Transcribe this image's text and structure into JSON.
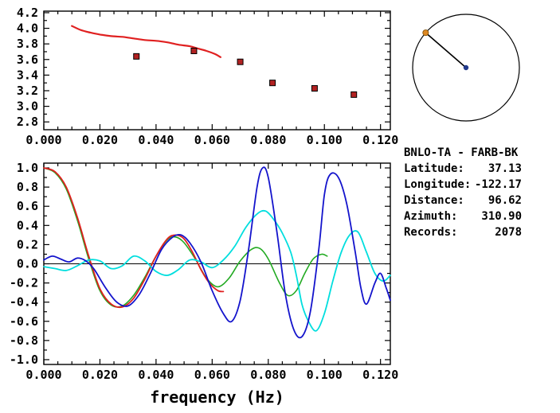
{
  "figure": {
    "background": "#ffffff"
  },
  "chart_data": [
    {
      "type": "line",
      "title": "",
      "xlabel": "",
      "ylabel": "",
      "xlim": [
        0,
        0.1235
      ],
      "ylim": [
        2.7,
        4.22
      ],
      "grid": false,
      "x_major_ticks": [
        0,
        0.02,
        0.04,
        0.06,
        0.08,
        0.1,
        0.12
      ],
      "x_tick_labels": [
        "0.000",
        "0.020",
        "0.040",
        "0.060",
        "0.080",
        "0.100",
        "0.120"
      ],
      "y_major_ticks": [
        2.8,
        3.0,
        3.2,
        3.4,
        3.6,
        3.8,
        4.0,
        4.2
      ],
      "y_tick_labels": [
        "2.8",
        "3.0",
        "3.2",
        "3.4",
        "3.6",
        "3.8",
        "4.0",
        "4.2"
      ],
      "series": [
        {
          "name": "dispersion-curve",
          "kind": "line",
          "color": "#e02020",
          "width": 2.2,
          "points": [
            [
              0.01,
              4.03
            ],
            [
              0.013,
              3.98
            ],
            [
              0.016,
              3.95
            ],
            [
              0.02,
              3.92
            ],
            [
              0.024,
              3.9
            ],
            [
              0.028,
              3.89
            ],
            [
              0.032,
              3.87
            ],
            [
              0.036,
              3.85
            ],
            [
              0.04,
              3.84
            ],
            [
              0.044,
              3.82
            ],
            [
              0.048,
              3.79
            ],
            [
              0.052,
              3.77
            ],
            [
              0.055,
              3.74
            ],
            [
              0.058,
              3.71
            ],
            [
              0.061,
              3.67
            ],
            [
              0.063,
              3.63
            ]
          ]
        },
        {
          "name": "dispersion-picks",
          "kind": "scatter",
          "color": "#b22222",
          "points": [
            [
              0.033,
              3.64
            ],
            [
              0.0535,
              3.71
            ],
            [
              0.07,
              3.57
            ],
            [
              0.0815,
              3.3
            ],
            [
              0.0965,
              3.23
            ],
            [
              0.1105,
              3.15
            ]
          ]
        }
      ]
    },
    {
      "type": "line",
      "title": "",
      "xlabel": "frequency (Hz)",
      "ylabel": "",
      "xlim": [
        0,
        0.1235
      ],
      "ylim": [
        -1.05,
        1.05
      ],
      "grid": false,
      "zero_line": true,
      "x_major_ticks": [
        0,
        0.02,
        0.04,
        0.06,
        0.08,
        0.1,
        0.12
      ],
      "x_tick_labels": [
        "0.000",
        "0.020",
        "0.040",
        "0.060",
        "0.080",
        "0.100",
        "0.120"
      ],
      "y_major_ticks": [
        -1.0,
        -0.8,
        -0.6,
        -0.4,
        -0.2,
        0.0,
        0.2,
        0.4,
        0.6,
        0.8,
        1.0
      ],
      "y_tick_labels": [
        "-1.0",
        "-0.8",
        "-0.6",
        "-0.4",
        "-0.2",
        "0.0",
        "0.2",
        "0.4",
        "0.6",
        "0.8",
        "1.0"
      ],
      "series": [
        {
          "name": "waveform-green",
          "kind": "line",
          "color": "#22aa22",
          "width": 1.6,
          "points": [
            [
              0.0,
              1.0
            ],
            [
              0.004,
              0.95
            ],
            [
              0.008,
              0.78
            ],
            [
              0.012,
              0.45
            ],
            [
              0.016,
              0.05
            ],
            [
              0.02,
              -0.28
            ],
            [
              0.024,
              -0.43
            ],
            [
              0.028,
              -0.44
            ],
            [
              0.032,
              -0.33
            ],
            [
              0.036,
              -0.14
            ],
            [
              0.04,
              0.08
            ],
            [
              0.044,
              0.25
            ],
            [
              0.047,
              0.28
            ],
            [
              0.05,
              0.22
            ],
            [
              0.054,
              0.05
            ],
            [
              0.058,
              -0.15
            ],
            [
              0.062,
              -0.24
            ],
            [
              0.066,
              -0.15
            ],
            [
              0.07,
              0.03
            ],
            [
              0.074,
              0.15
            ],
            [
              0.077,
              0.16
            ],
            [
              0.08,
              0.05
            ],
            [
              0.084,
              -0.2
            ],
            [
              0.087,
              -0.33
            ],
            [
              0.09,
              -0.28
            ],
            [
              0.093,
              -0.1
            ],
            [
              0.096,
              0.05
            ],
            [
              0.099,
              0.1
            ],
            [
              0.101,
              0.08
            ]
          ]
        },
        {
          "name": "waveform-red",
          "kind": "line",
          "color": "#e02020",
          "width": 1.8,
          "points": [
            [
              0.0,
              1.0
            ],
            [
              0.004,
              0.96
            ],
            [
              0.008,
              0.8
            ],
            [
              0.012,
              0.48
            ],
            [
              0.016,
              0.08
            ],
            [
              0.02,
              -0.26
            ],
            [
              0.024,
              -0.42
            ],
            [
              0.028,
              -0.45
            ],
            [
              0.032,
              -0.36
            ],
            [
              0.036,
              -0.16
            ],
            [
              0.04,
              0.08
            ],
            [
              0.044,
              0.26
            ],
            [
              0.047,
              0.3
            ],
            [
              0.05,
              0.26
            ],
            [
              0.053,
              0.12
            ],
            [
              0.056,
              -0.06
            ],
            [
              0.059,
              -0.2
            ],
            [
              0.062,
              -0.28
            ],
            [
              0.064,
              -0.29
            ]
          ]
        },
        {
          "name": "waveform-cyan",
          "kind": "line",
          "color": "#00dede",
          "width": 1.8,
          "points": [
            [
              0.0,
              -0.03
            ],
            [
              0.004,
              -0.05
            ],
            [
              0.008,
              -0.07
            ],
            [
              0.012,
              -0.02
            ],
            [
              0.016,
              0.04
            ],
            [
              0.02,
              0.03
            ],
            [
              0.024,
              -0.05
            ],
            [
              0.028,
              -0.02
            ],
            [
              0.032,
              0.08
            ],
            [
              0.036,
              0.03
            ],
            [
              0.04,
              -0.08
            ],
            [
              0.044,
              -0.12
            ],
            [
              0.048,
              -0.06
            ],
            [
              0.052,
              0.04
            ],
            [
              0.056,
              0.02
            ],
            [
              0.06,
              -0.04
            ],
            [
              0.064,
              0.04
            ],
            [
              0.068,
              0.18
            ],
            [
              0.072,
              0.38
            ],
            [
              0.076,
              0.52
            ],
            [
              0.079,
              0.55
            ],
            [
              0.082,
              0.46
            ],
            [
              0.085,
              0.32
            ],
            [
              0.088,
              0.12
            ],
            [
              0.09,
              -0.12
            ],
            [
              0.092,
              -0.42
            ],
            [
              0.094,
              -0.58
            ],
            [
              0.097,
              -0.7
            ],
            [
              0.1,
              -0.52
            ],
            [
              0.103,
              -0.18
            ],
            [
              0.106,
              0.12
            ],
            [
              0.109,
              0.3
            ],
            [
              0.112,
              0.33
            ],
            [
              0.115,
              0.12
            ],
            [
              0.118,
              -0.1
            ],
            [
              0.121,
              -0.18
            ],
            [
              0.1235,
              -0.12
            ]
          ]
        },
        {
          "name": "waveform-blue",
          "kind": "line",
          "color": "#1414cc",
          "width": 1.8,
          "points": [
            [
              0.0,
              0.04
            ],
            [
              0.003,
              0.08
            ],
            [
              0.006,
              0.05
            ],
            [
              0.009,
              0.02
            ],
            [
              0.012,
              0.06
            ],
            [
              0.015,
              0.03
            ],
            [
              0.018,
              -0.06
            ],
            [
              0.022,
              -0.25
            ],
            [
              0.026,
              -0.4
            ],
            [
              0.03,
              -0.44
            ],
            [
              0.034,
              -0.32
            ],
            [
              0.038,
              -0.1
            ],
            [
              0.042,
              0.15
            ],
            [
              0.046,
              0.28
            ],
            [
              0.049,
              0.3
            ],
            [
              0.052,
              0.22
            ],
            [
              0.056,
              0.02
            ],
            [
              0.06,
              -0.28
            ],
            [
              0.064,
              -0.52
            ],
            [
              0.067,
              -0.6
            ],
            [
              0.07,
              -0.38
            ],
            [
              0.073,
              0.15
            ],
            [
              0.076,
              0.8
            ],
            [
              0.078,
              1.0
            ],
            [
              0.08,
              0.9
            ],
            [
              0.083,
              0.35
            ],
            [
              0.086,
              -0.3
            ],
            [
              0.089,
              -0.68
            ],
            [
              0.092,
              -0.76
            ],
            [
              0.095,
              -0.5
            ],
            [
              0.098,
              0.15
            ],
            [
              0.1,
              0.72
            ],
            [
              0.102,
              0.93
            ],
            [
              0.105,
              0.9
            ],
            [
              0.108,
              0.62
            ],
            [
              0.111,
              0.12
            ],
            [
              0.113,
              -0.25
            ],
            [
              0.115,
              -0.42
            ],
            [
              0.118,
              -0.2
            ],
            [
              0.12,
              -0.1
            ],
            [
              0.122,
              -0.25
            ],
            [
              0.1235,
              -0.38
            ]
          ]
        }
      ]
    }
  ],
  "compass": {
    "azimuth_deg": 310.9,
    "circle_color": "#000000",
    "line_color": "#000000",
    "center_dot_color": "#223a8c",
    "edge_dot_color": "#dd8822"
  },
  "info": {
    "pair": "BNLO-TA - FARB-BK",
    "rows": [
      {
        "label": "Latitude:",
        "value": "37.13"
      },
      {
        "label": "Longitude:",
        "value": "-122.17"
      },
      {
        "label": "Distance:",
        "value": "96.62"
      },
      {
        "label": "Azimuth:",
        "value": "310.90"
      },
      {
        "label": "Records:",
        "value": "2078"
      }
    ]
  }
}
